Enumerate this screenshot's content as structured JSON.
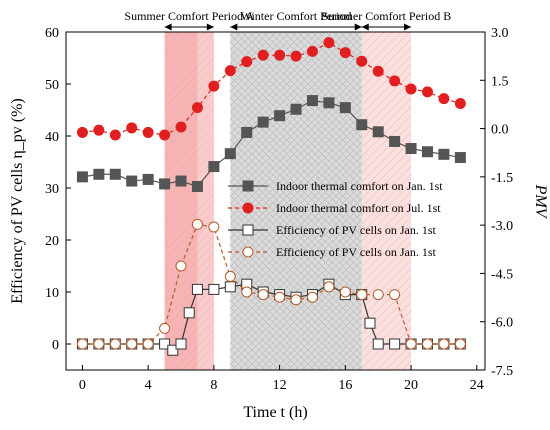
{
  "chart_data": {
    "type": "line",
    "xlabel": "Time t (h)",
    "ylabel_left": "Efficiency of PV cells η_pv (%)",
    "ylabel_right": "PMV",
    "x_ticks": [
      0,
      4,
      8,
      12,
      16,
      20,
      24
    ],
    "xlim": [
      -1,
      24.5
    ],
    "ylim_left": [
      -5,
      60
    ],
    "ylim_right": [
      -7.5,
      3.0
    ],
    "left_ticks": [
      0,
      10,
      20,
      30,
      40,
      50,
      60
    ],
    "right_tick_labels": [
      "3.0",
      "1.5",
      "0.0",
      "-1.5",
      "-3.0",
      "-4.5",
      "-6.0",
      "-7.5"
    ],
    "periods": [
      {
        "label": "Summer Comfort Period A",
        "from": 5,
        "to": 8,
        "shade": "#f4a0a0"
      },
      {
        "label": "Winter Comfort Period",
        "from": 9,
        "to": 17,
        "shade": "#cfcfcf"
      },
      {
        "label": "Summer Comfort Period B",
        "from": 17,
        "to": 20,
        "shade": "#f8c6c6"
      }
    ],
    "series": [
      {
        "name": "Indoor thermal comfort on Jan. 1st",
        "axis": "right",
        "color": "#555555",
        "marker": "square-filled",
        "dash": false,
        "x": [
          0,
          1,
          2,
          3,
          4,
          5,
          6,
          7,
          8,
          9,
          10,
          11,
          12,
          13,
          14,
          15,
          16,
          17,
          18,
          19,
          20,
          21,
          22,
          23
        ],
        "y": [
          -1.5,
          -1.42,
          -1.42,
          -1.63,
          -1.58,
          -1.72,
          -1.63,
          -1.8,
          -1.18,
          -0.78,
          -0.12,
          0.2,
          0.4,
          0.6,
          0.87,
          0.8,
          0.65,
          0.12,
          -0.1,
          -0.4,
          -0.62,
          -0.72,
          -0.8,
          -0.9
        ]
      },
      {
        "name": "Indoor thermal comfort on Jul. 1st",
        "axis": "right",
        "color": "#e02020",
        "marker": "circle-filled",
        "dash": true,
        "x": [
          0,
          1,
          2,
          3,
          4,
          5,
          6,
          7,
          8,
          9,
          10,
          11,
          12,
          13,
          14,
          15,
          16,
          17,
          18,
          19,
          20,
          21,
          22,
          23
        ],
        "y": [
          -0.12,
          -0.05,
          -0.2,
          0.02,
          -0.12,
          -0.2,
          0.05,
          0.65,
          1.32,
          1.8,
          2.08,
          2.28,
          2.28,
          2.25,
          2.4,
          2.67,
          2.36,
          2.09,
          1.78,
          1.48,
          1.23,
          1.14,
          0.93,
          0.78
        ]
      },
      {
        "name": "Efficiency of PV cells on Jan. 1st",
        "axis": "left",
        "color": "#333333",
        "marker": "square-open",
        "dash": false,
        "x": [
          0,
          1,
          2,
          3,
          4,
          5,
          5.5,
          6,
          6.5,
          7,
          8,
          9,
          10,
          11,
          12,
          13,
          14,
          15,
          16,
          17,
          17.5,
          18,
          19,
          20,
          21,
          22,
          23
        ],
        "y": [
          0,
          0,
          0,
          0,
          0,
          0,
          -1.2,
          0,
          6,
          10.5,
          10.5,
          11,
          11.5,
          10,
          9.5,
          9,
          9.5,
          11.5,
          9.5,
          9.5,
          4,
          0,
          0,
          0,
          0,
          0,
          0
        ]
      },
      {
        "name": "Efficiency of PV cells on Jan. 1st",
        "axis": "left",
        "color": "#b85a2a",
        "marker": "circle-open",
        "dash": true,
        "x": [
          0,
          1,
          2,
          3,
          4,
          5,
          6,
          7,
          8,
          9,
          10,
          11,
          12,
          13,
          14,
          15,
          16,
          17,
          18,
          19,
          20,
          21,
          22,
          23
        ],
        "y": [
          0,
          0,
          0,
          0,
          0,
          3,
          15,
          23,
          22.5,
          13,
          10,
          9.5,
          9,
          8.5,
          9,
          11,
          10,
          9.5,
          9.5,
          9.5,
          0,
          0,
          0,
          0
        ]
      }
    ]
  }
}
